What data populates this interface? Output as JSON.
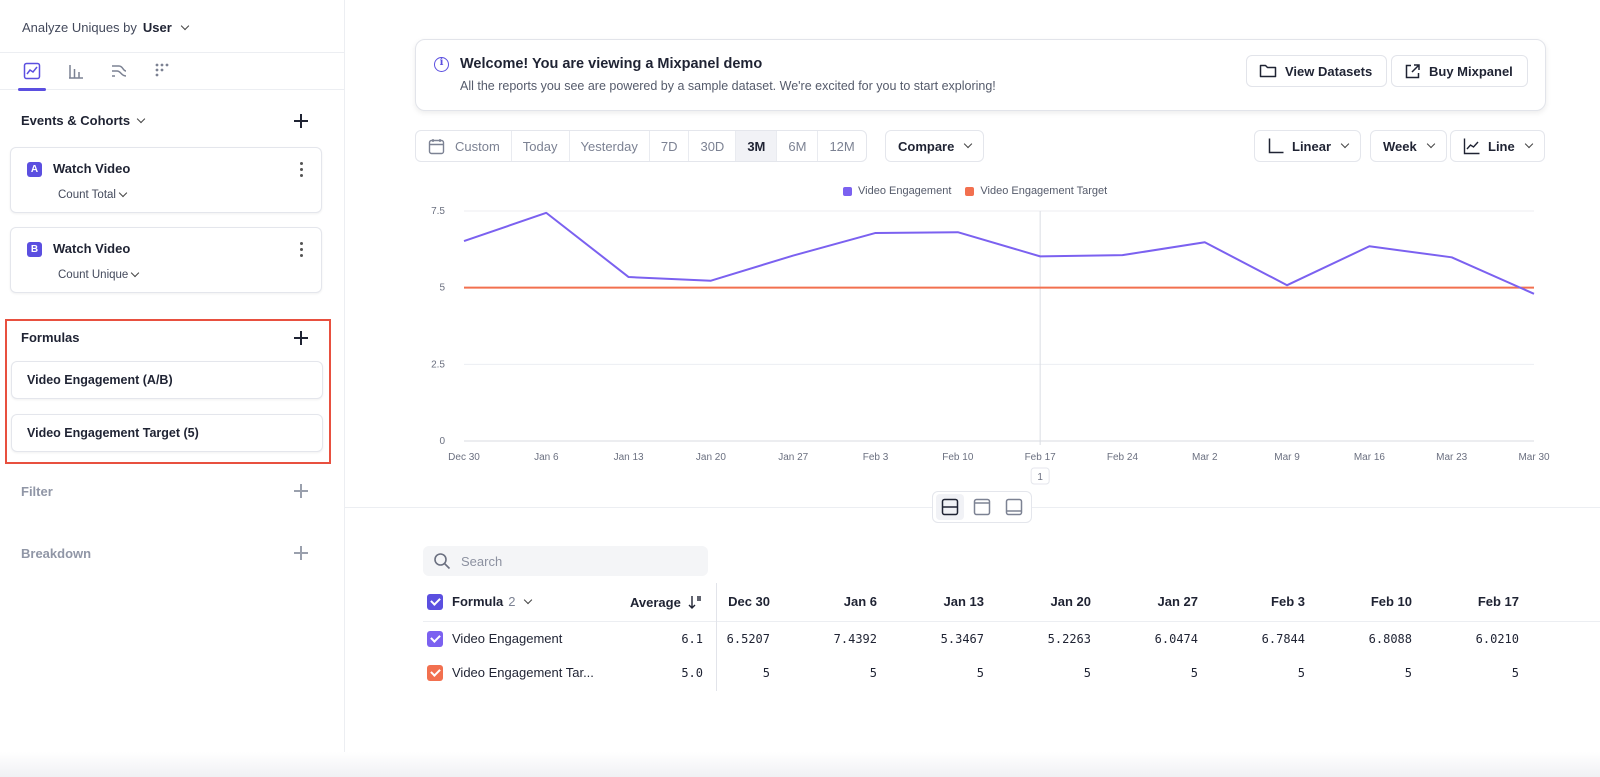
{
  "sidebar": {
    "analyze_label": "Analyze Uniques by",
    "analyze_value": "User",
    "events_title": "Events & Cohorts",
    "events": [
      {
        "badge": "A",
        "name": "Watch Video",
        "metric": "Count Total"
      },
      {
        "badge": "B",
        "name": "Watch Video",
        "metric": "Count Unique"
      }
    ],
    "formulas_title": "Formulas",
    "formulas": [
      {
        "label": "Video Engagement (A/B)"
      },
      {
        "label": "Video Engagement Target (5)"
      }
    ],
    "filter_title": "Filter",
    "breakdown_title": "Breakdown"
  },
  "banner": {
    "title": "Welcome! You are viewing a Mixpanel demo",
    "subtitle": "All the reports you see are powered by a sample dataset. We're excited for you to start exploring!",
    "view_datasets": "View Datasets",
    "buy": "Buy Mixpanel"
  },
  "toolbar": {
    "custom": "Custom",
    "ranges": [
      "Today",
      "Yesterday",
      "7D",
      "30D",
      "3M",
      "6M",
      "12M"
    ],
    "active_range": "3M",
    "compare": "Compare",
    "scale": "Linear",
    "interval": "Week",
    "chart_type": "Line"
  },
  "colors": {
    "accent": "#5b4fe0",
    "engagement": "#7b61f0",
    "target": "#f2704f",
    "highlight_box": "#e8503f"
  },
  "chart_data": {
    "type": "line",
    "x": [
      "Dec 30",
      "Jan 6",
      "Jan 13",
      "Jan 20",
      "Jan 27",
      "Feb 3",
      "Feb 10",
      "Feb 17",
      "Feb 24",
      "Mar 2",
      "Mar 9",
      "Mar 16",
      "Mar 23",
      "Mar 30"
    ],
    "series": [
      {
        "name": "Video Engagement",
        "color": "#7b61f0",
        "values": [
          6.5207,
          7.4392,
          5.3467,
          5.2263,
          6.0474,
          6.7844,
          6.8088,
          6.021,
          6.06,
          6.48,
          5.08,
          6.35,
          5.99,
          4.8
        ]
      },
      {
        "name": "Video Engagement Target",
        "color": "#f2704f",
        "values": [
          5,
          5,
          5,
          5,
          5,
          5,
          5,
          5,
          5,
          5,
          5,
          5,
          5,
          5
        ]
      }
    ],
    "yticks": [
      "0",
      "2.5",
      "5",
      "7.5"
    ],
    "ylim": [
      0,
      7.5
    ],
    "grid": true,
    "legend": "top-center",
    "hover_marker": {
      "x": "Feb 17",
      "label": "1"
    }
  },
  "search": {
    "placeholder": "Search"
  },
  "table": {
    "formula_header": "Formula",
    "formula_count": "2",
    "average_header": "Average",
    "columns": [
      "Dec 30",
      "Jan 6",
      "Jan 13",
      "Jan 20",
      "Jan 27",
      "Feb 3",
      "Feb 10",
      "Feb 17"
    ],
    "rows": [
      {
        "name": "Video Engagement",
        "color": "#7b61f0",
        "average": "6.1",
        "values": [
          "6.5207",
          "7.4392",
          "5.3467",
          "5.2263",
          "6.0474",
          "6.7844",
          "6.8088",
          "6.0210"
        ]
      },
      {
        "name": "Video Engagement Tar...",
        "color": "#f2704f",
        "average": "5.0",
        "values": [
          "5",
          "5",
          "5",
          "5",
          "5",
          "5",
          "5",
          "5"
        ]
      }
    ]
  }
}
